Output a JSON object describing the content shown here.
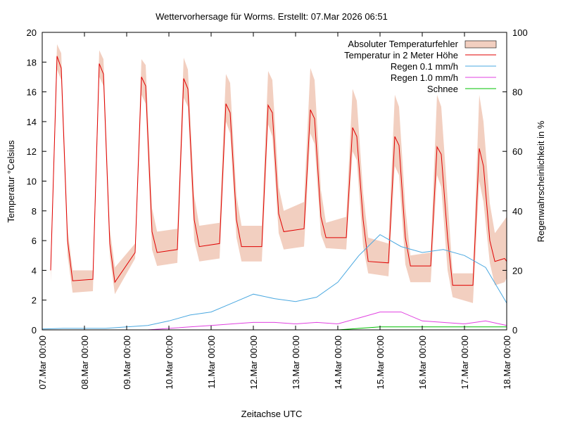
{
  "chart_data": {
    "type": "line",
    "title": "Wettervorhersage für Worms. Erstellt: 07.Mar 2026 06:51",
    "xlabel": "Zeitachse UTC",
    "ylabel": "Temperatur °Celsius",
    "y2label": "Regenwahrscheinlichkeit in %",
    "xlim": [
      0,
      11
    ],
    "ylim": [
      0,
      20
    ],
    "y2lim": [
      0,
      100
    ],
    "xticks": [
      {
        "x": 0,
        "label": "07.Mar 00:00"
      },
      {
        "x": 1,
        "label": "08.Mar 00:00"
      },
      {
        "x": 2,
        "label": "09.Mar 00:00"
      },
      {
        "x": 3,
        "label": "10.Mar 00:00"
      },
      {
        "x": 4,
        "label": "11.Mar 00:00"
      },
      {
        "x": 5,
        "label": "12.Mar 00:00"
      },
      {
        "x": 6,
        "label": "13.Mar 00:00"
      },
      {
        "x": 7,
        "label": "14.Mar 00:00"
      },
      {
        "x": 8,
        "label": "15.Mar 00:00"
      },
      {
        "x": 9,
        "label": "16.Mar 00:00"
      },
      {
        "x": 10,
        "label": "17.Mar 00:00"
      },
      {
        "x": 11,
        "label": "18.Mar 00:00"
      }
    ],
    "yticks": [
      "0",
      "2",
      "4",
      "6",
      "8",
      "10",
      "12",
      "14",
      "16",
      "18",
      "20"
    ],
    "y2ticks": [
      "0",
      "20",
      "40",
      "60",
      "80",
      "100"
    ],
    "grid": false,
    "legend_position": "top-right",
    "colors": {
      "band": "#f2cfc0",
      "temperature": "#e00000",
      "rain01": "#4aa8e0",
      "rain10": "#e040e0",
      "snow": "#00c000"
    },
    "series": [
      {
        "name": "Absoluter Temperaturfehler",
        "kind": "band",
        "x": [
          0.2,
          0.35,
          0.45,
          0.6,
          0.72,
          1.2,
          1.35,
          1.45,
          1.6,
          1.72,
          2.2,
          2.35,
          2.45,
          2.6,
          2.72,
          3.2,
          3.35,
          3.45,
          3.6,
          3.72,
          4.2,
          4.35,
          4.45,
          4.6,
          4.72,
          5.2,
          5.35,
          5.45,
          5.6,
          5.72,
          6.2,
          6.35,
          6.45,
          6.6,
          6.72,
          7.2,
          7.35,
          7.45,
          7.6,
          7.72,
          8.2,
          8.35,
          8.45,
          8.6,
          8.72,
          9.2,
          9.35,
          9.45,
          9.6,
          9.72,
          10.2,
          10.35,
          10.45,
          10.6,
          10.72,
          10.95,
          11.0
        ],
        "low": [
          3.2,
          17.5,
          16.8,
          5.0,
          2.5,
          2.6,
          17.0,
          16.4,
          5.0,
          2.4,
          4.8,
          15.8,
          15.2,
          5.4,
          4.3,
          4.5,
          15.6,
          15.0,
          6.0,
          4.6,
          4.8,
          14.0,
          13.2,
          6.2,
          4.6,
          4.6,
          13.8,
          13.0,
          6.5,
          5.4,
          5.6,
          13.2,
          12.5,
          6.4,
          5.5,
          5.4,
          12.0,
          11.4,
          5.6,
          3.8,
          3.6,
          11.0,
          10.4,
          4.4,
          3.2,
          3.2,
          10.4,
          9.6,
          4.0,
          2.2,
          1.8,
          10.0,
          8.6,
          4.5,
          3.0,
          3.2,
          3.5
        ],
        "high": [
          4.4,
          19.2,
          18.6,
          6.8,
          4.0,
          4.0,
          18.8,
          18.2,
          6.8,
          4.2,
          5.8,
          18.2,
          17.8,
          8.2,
          6.6,
          6.8,
          18.3,
          17.5,
          9.0,
          7.0,
          7.2,
          17.2,
          16.6,
          9.0,
          7.0,
          7.0,
          17.4,
          16.8,
          9.6,
          8.0,
          8.6,
          17.6,
          16.8,
          9.4,
          7.2,
          7.6,
          16.2,
          15.4,
          9.2,
          6.2,
          5.8,
          15.8,
          15.0,
          8.2,
          5.0,
          5.2,
          15.8,
          15.0,
          8.8,
          3.8,
          3.8,
          15.8,
          14.0,
          8.5,
          6.5,
          7.4,
          7.6
        ]
      },
      {
        "name": "Temperatur in 2 Meter Höhe",
        "kind": "line",
        "x": [
          0.2,
          0.35,
          0.45,
          0.6,
          0.72,
          1.2,
          1.35,
          1.45,
          1.6,
          1.72,
          2.2,
          2.35,
          2.45,
          2.6,
          2.72,
          3.2,
          3.35,
          3.45,
          3.6,
          3.72,
          4.2,
          4.35,
          4.45,
          4.6,
          4.72,
          5.2,
          5.35,
          5.45,
          5.6,
          5.72,
          6.2,
          6.35,
          6.45,
          6.6,
          6.72,
          7.2,
          7.35,
          7.45,
          7.6,
          7.72,
          8.2,
          8.35,
          8.45,
          8.6,
          8.72,
          9.2,
          9.35,
          9.45,
          9.6,
          9.72,
          10.2,
          10.35,
          10.45,
          10.6,
          10.72,
          10.95,
          11.0
        ],
        "values": [
          4.0,
          18.4,
          17.6,
          6.0,
          3.3,
          3.4,
          17.9,
          17.2,
          5.8,
          3.2,
          5.2,
          17.0,
          16.4,
          6.6,
          5.2,
          5.4,
          16.9,
          16.2,
          7.4,
          5.6,
          5.8,
          15.2,
          14.6,
          7.4,
          5.6,
          5.6,
          15.1,
          14.6,
          7.8,
          6.6,
          6.8,
          14.8,
          14.2,
          7.6,
          6.2,
          6.2,
          13.6,
          13.0,
          7.4,
          4.6,
          4.5,
          13.0,
          12.4,
          6.2,
          4.3,
          4.3,
          12.3,
          11.8,
          6.2,
          3.0,
          3.0,
          12.2,
          11.0,
          6.0,
          4.6,
          4.8,
          4.6
        ]
      },
      {
        "name": "Regen 0.1 mm/h",
        "kind": "line",
        "axis": "right",
        "x": [
          0.0,
          0.5,
          1.0,
          1.5,
          2.0,
          2.5,
          3.0,
          3.5,
          4.0,
          4.5,
          5.0,
          5.5,
          6.0,
          6.5,
          7.0,
          7.5,
          8.0,
          8.5,
          9.0,
          9.5,
          10.0,
          10.5,
          11.0
        ],
        "values": [
          0.3,
          0.5,
          0.5,
          0.5,
          1.0,
          1.5,
          3.0,
          5.0,
          6.0,
          9.0,
          12.0,
          10.5,
          9.5,
          11.0,
          16.0,
          25.0,
          32.0,
          28.0,
          26.0,
          27.0,
          25.0,
          21.0,
          9.0
        ]
      },
      {
        "name": "Regen 1.0 mm/h",
        "kind": "line",
        "axis": "right",
        "x": [
          0.0,
          0.5,
          1.0,
          1.5,
          2.0,
          2.5,
          3.0,
          3.5,
          4.0,
          4.5,
          5.0,
          5.5,
          6.0,
          6.5,
          7.0,
          7.5,
          8.0,
          8.5,
          9.0,
          9.5,
          10.0,
          10.5,
          11.0
        ],
        "values": [
          0.0,
          0.0,
          0.0,
          0.0,
          0.0,
          0.0,
          0.5,
          1.0,
          1.5,
          2.0,
          2.5,
          2.5,
          2.0,
          2.5,
          2.0,
          4.0,
          6.0,
          6.0,
          3.0,
          2.5,
          2.0,
          3.0,
          1.5
        ]
      },
      {
        "name": "Schnee",
        "kind": "line",
        "axis": "right",
        "x": [
          0.0,
          0.5,
          1.0,
          1.5,
          2.0,
          2.5,
          3.0,
          3.5,
          4.0,
          4.5,
          5.0,
          5.5,
          6.0,
          6.5,
          7.0,
          7.5,
          8.0,
          8.5,
          9.0,
          9.5,
          10.0,
          10.5,
          11.0
        ],
        "values": [
          0.0,
          0.0,
          0.0,
          0.0,
          0.0,
          0.0,
          0.0,
          0.0,
          0.0,
          0.0,
          0.0,
          0.0,
          0.0,
          0.0,
          0.0,
          0.5,
          1.0,
          1.0,
          1.0,
          1.0,
          1.0,
          1.0,
          1.0
        ]
      }
    ]
  }
}
